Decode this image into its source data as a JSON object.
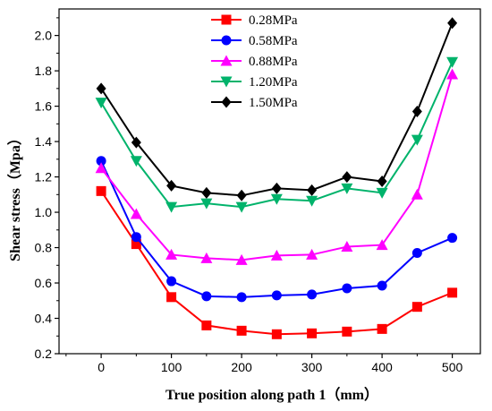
{
  "chart_data": {
    "type": "line",
    "xlabel": "True position along path 1（mm）",
    "ylabel": "Shear stress（Mpa）",
    "xlim": [
      -60,
      540
    ],
    "ylim": [
      0.2,
      2.15
    ],
    "x_ticks": [
      0,
      100,
      200,
      300,
      400,
      500
    ],
    "x_tick_labels": [
      "0",
      "100",
      "200",
      "300",
      "400",
      "500"
    ],
    "y_ticks": [
      0.2,
      0.4,
      0.6,
      0.8,
      1.0,
      1.2,
      1.4,
      1.6,
      1.8,
      2.0
    ],
    "y_tick_labels": [
      "0.2",
      "0.4",
      "0.6",
      "0.8",
      "1.0",
      "1.2",
      "1.4",
      "1.6",
      "1.8",
      "2.0"
    ],
    "grid": false,
    "legend_position": "top-center",
    "x": [
      0,
      50,
      100,
      150,
      200,
      250,
      300,
      350,
      400,
      450,
      500
    ],
    "series": [
      {
        "name": "0.28MPa",
        "color": "#ff0000",
        "marker": "square",
        "values": [
          1.12,
          0.82,
          0.52,
          0.36,
          0.33,
          0.31,
          0.315,
          0.325,
          0.34,
          0.465,
          0.545
        ]
      },
      {
        "name": "0.58MPa",
        "color": "#0000ff",
        "marker": "circle",
        "values": [
          1.29,
          0.86,
          0.61,
          0.525,
          0.52,
          0.53,
          0.535,
          0.57,
          0.585,
          0.77,
          0.855
        ]
      },
      {
        "name": "0.88MPa",
        "color": "#ff00ff",
        "marker": "triangle-up",
        "values": [
          1.25,
          0.99,
          0.76,
          0.74,
          0.73,
          0.755,
          0.76,
          0.805,
          0.815,
          1.1,
          1.78
        ]
      },
      {
        "name": "1.20MPa",
        "color": "#00b36b",
        "marker": "triangle-down",
        "values": [
          1.62,
          1.29,
          1.03,
          1.05,
          1.03,
          1.075,
          1.065,
          1.135,
          1.11,
          1.41,
          1.85
        ]
      },
      {
        "name": "1.50MPa",
        "color": "#000000",
        "marker": "diamond",
        "values": [
          1.7,
          1.395,
          1.15,
          1.11,
          1.095,
          1.135,
          1.125,
          1.2,
          1.175,
          1.57,
          2.07
        ]
      }
    ]
  }
}
